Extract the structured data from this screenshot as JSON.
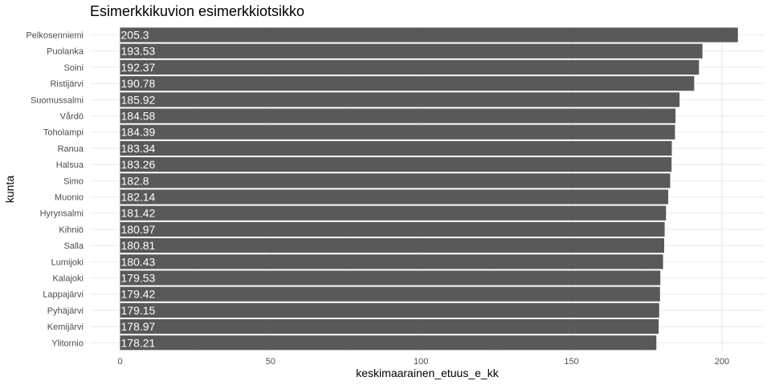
{
  "chart_data": {
    "type": "bar",
    "orientation": "horizontal",
    "title": "Esimerkkikuvion esimerkkiotsikko",
    "xlabel": "keskimaarainen_etuus_e_kk",
    "ylabel": "kunta",
    "xlim": [
      0,
      215
    ],
    "xticks": [
      0,
      50,
      100,
      150,
      200
    ],
    "grid": true,
    "bar_color": "#595959",
    "label_color": "#ffffff",
    "categories": [
      "Pelkosenniemi",
      "Puolanka",
      "Soini",
      "Ristijärvi",
      "Suomussalmi",
      "Vårdö",
      "Toholampi",
      "Ranua",
      "Halsua",
      "Simo",
      "Muonio",
      "Hyrynsalmi",
      "Kihniö",
      "Salla",
      "Lumijoki",
      "Kalajoki",
      "Lappajärvi",
      "Pyhäjärvi",
      "Kemijärvi",
      "Ylitornio"
    ],
    "values": [
      205.3,
      193.53,
      192.37,
      190.78,
      185.92,
      184.58,
      184.39,
      183.34,
      183.26,
      182.8,
      182.14,
      181.42,
      180.97,
      180.81,
      180.43,
      179.53,
      179.42,
      179.15,
      178.97,
      178.21
    ],
    "value_labels": [
      "205.3",
      "193.53",
      "192.37",
      "190.78",
      "185.92",
      "184.58",
      "184.39",
      "183.34",
      "183.26",
      "182.8",
      "182.14",
      "181.42",
      "180.97",
      "180.81",
      "180.43",
      "179.53",
      "179.42",
      "179.15",
      "178.97",
      "178.21"
    ]
  }
}
